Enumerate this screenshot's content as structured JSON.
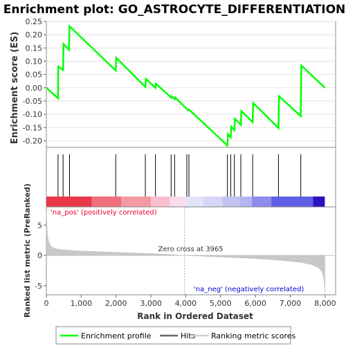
{
  "chart_data": {
    "type": "line",
    "title": "Enrichment plot: GO_ASTROCYTE_DIFFERENTIATION",
    "colors": {
      "enrichment": "#00ff00",
      "hits": "#000000",
      "metric_fill": "#c8c8c8",
      "pos_text": "#e8002a",
      "neg_text": "#0000d0",
      "zero_line": "#c0c0c0"
    },
    "es_panel": {
      "ylabel": "Enrichment score (ES)",
      "ylim": [
        -0.225,
        0.25
      ],
      "yticks": [
        0.25,
        0.2,
        0.15,
        0.1,
        0.05,
        0.0,
        -0.05,
        -0.1,
        -0.15,
        -0.2
      ],
      "ytick_labels": [
        "0.25",
        "0.20",
        "0.15",
        "0.10",
        "0.05",
        "0.00",
        "-0.05",
        "-0.10",
        "-0.15",
        "-0.20"
      ],
      "grid": true,
      "points": [
        [
          0,
          0.0
        ],
        [
          335,
          -0.04
        ],
        [
          340,
          0.08
        ],
        [
          480,
          0.067
        ],
        [
          490,
          0.165
        ],
        [
          650,
          0.143
        ],
        [
          665,
          0.232
        ],
        [
          1990,
          0.065
        ],
        [
          2005,
          0.113
        ],
        [
          2840,
          0.003
        ],
        [
          2855,
          0.033
        ],
        [
          3130,
          0.0
        ],
        [
          3145,
          0.015
        ],
        [
          3580,
          -0.037
        ],
        [
          3590,
          -0.032
        ],
        [
          3680,
          -0.043
        ],
        [
          3700,
          -0.037
        ],
        [
          4030,
          -0.08
        ],
        [
          4060,
          -0.085
        ],
        [
          4090,
          -0.082
        ],
        [
          5195,
          -0.218
        ],
        [
          5210,
          -0.175
        ],
        [
          5290,
          -0.187
        ],
        [
          5305,
          -0.147
        ],
        [
          5395,
          -0.16
        ],
        [
          5410,
          -0.117
        ],
        [
          5580,
          -0.14
        ],
        [
          5595,
          -0.088
        ],
        [
          5920,
          -0.13
        ],
        [
          5935,
          -0.058
        ],
        [
          6660,
          -0.152
        ],
        [
          6675,
          -0.032
        ],
        [
          7300,
          -0.107
        ],
        [
          7315,
          0.084
        ],
        [
          7990,
          0.0
        ]
      ]
    },
    "hits_panel": {
      "hit_ranks": [
        335,
        480,
        665,
        1990,
        2840,
        3130,
        3580,
        3680,
        4030,
        4090,
        5195,
        5290,
        5395,
        5580,
        5920,
        6660,
        7300
      ],
      "heatmap_bands": [
        {
          "from": 0,
          "to": 1300,
          "color": "#e8384a"
        },
        {
          "from": 1300,
          "to": 2150,
          "color": "#ef6f7c"
        },
        {
          "from": 2150,
          "to": 3000,
          "color": "#f49aa2"
        },
        {
          "from": 3000,
          "to": 3550,
          "color": "#f8c0cf"
        },
        {
          "from": 3550,
          "to": 4000,
          "color": "#fbdcea"
        },
        {
          "from": 4000,
          "to": 4500,
          "color": "#e4e4f8"
        },
        {
          "from": 4500,
          "to": 5050,
          "color": "#d6d6f6"
        },
        {
          "from": 5050,
          "to": 5550,
          "color": "#c2c2f2"
        },
        {
          "from": 5550,
          "to": 5900,
          "color": "#b4b4f0"
        },
        {
          "from": 5900,
          "to": 6450,
          "color": "#8c8cec"
        },
        {
          "from": 6450,
          "to": 7650,
          "color": "#6060e4"
        },
        {
          "from": 7650,
          "to": 7990,
          "color": "#2a12c4"
        }
      ]
    },
    "metric_panel": {
      "ylabel": "Ranked list metric (PreRanked)",
      "xlabel": "Rank in Ordered Dataset",
      "ylim": [
        -6.5,
        8.0
      ],
      "yticks": [
        5,
        0,
        -5
      ],
      "ytick_labels": [
        "5",
        "0",
        "-5"
      ],
      "xlim": [
        0,
        8300
      ],
      "xticks": [
        0,
        1000,
        2000,
        3000,
        4000,
        5000,
        6000,
        7000,
        8000
      ],
      "xtick_labels": [
        "0",
        "1,000",
        "2,000",
        "3,000",
        "4,000",
        "5,000",
        "6,000",
        "7,000",
        "8,000"
      ],
      "zero_cross_rank": 3965,
      "zero_cross_text": "Zero cross at 3965",
      "pos_label": "'na_pos' (positively correlated)",
      "neg_label": "'na_neg' (negatively correlated)",
      "metric_curve": [
        [
          0,
          7.0
        ],
        [
          8,
          6.0
        ],
        [
          25,
          3.6
        ],
        [
          60,
          2.3
        ],
        [
          120,
          1.6
        ],
        [
          220,
          1.15
        ],
        [
          400,
          0.95
        ],
        [
          700,
          0.82
        ],
        [
          1000,
          0.72
        ],
        [
          1500,
          0.6
        ],
        [
          2000,
          0.5
        ],
        [
          2500,
          0.4
        ],
        [
          3000,
          0.28
        ],
        [
          3500,
          0.14
        ],
        [
          3965,
          0.0
        ],
        [
          4500,
          -0.12
        ],
        [
          5000,
          -0.25
        ],
        [
          5500,
          -0.38
        ],
        [
          6000,
          -0.52
        ],
        [
          6500,
          -0.7
        ],
        [
          7000,
          -0.95
        ],
        [
          7300,
          -1.15
        ],
        [
          7600,
          -1.5
        ],
        [
          7800,
          -2.0
        ],
        [
          7900,
          -2.6
        ],
        [
          7950,
          -3.4
        ],
        [
          7975,
          -4.5
        ],
        [
          7990,
          -6.2
        ]
      ]
    },
    "legend": {
      "placement": "bottom",
      "items": [
        "Enrichment profile",
        "Hits",
        "Ranking metric scores"
      ]
    }
  }
}
